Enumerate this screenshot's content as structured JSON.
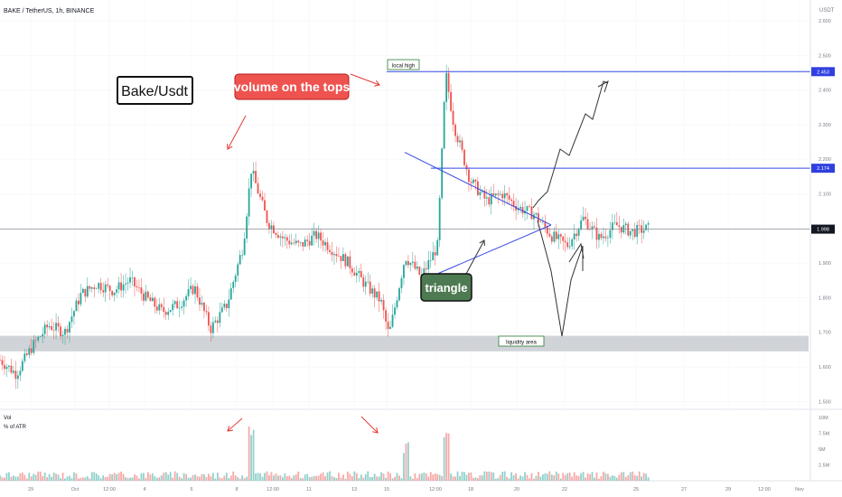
{
  "header": {
    "symbol_line": "BAKE / TetherUS, 1h, BINANCE",
    "price_currency": "USDT"
  },
  "chart_data": {
    "type": "candlestick",
    "title": "Bake/Usdt",
    "y_scale": "linear",
    "ylim": [
      1.48,
      2.66
    ],
    "x_tick_labels": [
      "29",
      "Oct",
      "12:00",
      "4",
      "6",
      "8",
      "12:00",
      "11",
      "13",
      "15",
      "12:00",
      "18",
      "20",
      "22",
      "25",
      "27",
      "29",
      "12:00",
      "Nov"
    ],
    "y_tick_labels": [
      "2.600",
      "2.500",
      "2.400",
      "2.300",
      "2.200",
      "2.100",
      "2.000",
      "1.900",
      "1.800",
      "1.700",
      "1.600",
      "1.500"
    ],
    "price_axis_badges": [
      {
        "label": "2.453",
        "value": 2.453,
        "color": "#2f3fe0"
      },
      {
        "label": "2.174",
        "value": 2.174,
        "color": "#2f3fe0"
      },
      {
        "label": "1.998",
        "value": 1.998,
        "color": "#131722"
      }
    ],
    "colors": {
      "up": "#26a69a",
      "down": "#ef5350",
      "zone": "#c8cbd1",
      "line": "#3348e6"
    },
    "price_path": [
      {
        "t": 0,
        "p": 1.62
      },
      {
        "t": 0.02,
        "p": 1.58
      },
      {
        "t": 0.04,
        "p": 1.66
      },
      {
        "t": 0.06,
        "p": 1.72
      },
      {
        "t": 0.08,
        "p": 1.7
      },
      {
        "t": 0.1,
        "p": 1.81
      },
      {
        "t": 0.12,
        "p": 1.84
      },
      {
        "t": 0.14,
        "p": 1.82
      },
      {
        "t": 0.16,
        "p": 1.85
      },
      {
        "t": 0.18,
        "p": 1.8
      },
      {
        "t": 0.2,
        "p": 1.76
      },
      {
        "t": 0.22,
        "p": 1.78
      },
      {
        "t": 0.24,
        "p": 1.83
      },
      {
        "t": 0.26,
        "p": 1.71
      },
      {
        "t": 0.28,
        "p": 1.78
      },
      {
        "t": 0.3,
        "p": 1.95
      },
      {
        "t": 0.31,
        "p": 2.17
      },
      {
        "t": 0.33,
        "p": 2.02
      },
      {
        "t": 0.35,
        "p": 1.97
      },
      {
        "t": 0.37,
        "p": 1.95
      },
      {
        "t": 0.39,
        "p": 1.98
      },
      {
        "t": 0.41,
        "p": 1.94
      },
      {
        "t": 0.43,
        "p": 1.9
      },
      {
        "t": 0.45,
        "p": 1.84
      },
      {
        "t": 0.47,
        "p": 1.79
      },
      {
        "t": 0.48,
        "p": 1.69
      },
      {
        "t": 0.5,
        "p": 1.92
      },
      {
        "t": 0.52,
        "p": 1.86
      },
      {
        "t": 0.54,
        "p": 1.95
      },
      {
        "t": 0.55,
        "p": 2.45
      },
      {
        "t": 0.56,
        "p": 2.3
      },
      {
        "t": 0.58,
        "p": 2.14
      },
      {
        "t": 0.6,
        "p": 2.08
      },
      {
        "t": 0.62,
        "p": 2.1
      },
      {
        "t": 0.64,
        "p": 2.06
      },
      {
        "t": 0.66,
        "p": 2.04
      },
      {
        "t": 0.68,
        "p": 1.98
      },
      {
        "t": 0.7,
        "p": 1.95
      },
      {
        "t": 0.72,
        "p": 2.03
      },
      {
        "t": 0.74,
        "p": 1.97
      },
      {
        "t": 0.76,
        "p": 2.01
      },
      {
        "t": 0.78,
        "p": 1.99
      },
      {
        "t": 0.8,
        "p": 2.0
      }
    ],
    "volume_panel": {
      "title": "Vol",
      "subtitle": "% of ATR",
      "y_tick_labels": [
        "10M",
        "7.5M",
        "5M",
        "2.5M"
      ],
      "spikes": [
        {
          "t": 0.31,
          "v": 10
        },
        {
          "t": 0.5,
          "v": 6.2
        },
        {
          "t": 0.55,
          "v": 8.7
        }
      ]
    },
    "annotations": {
      "title_box": "Bake/Usdt",
      "volume_note": "volume on the tops",
      "local_high": "local high",
      "triangle": "triangle",
      "liquidity": "liquidity area"
    }
  }
}
